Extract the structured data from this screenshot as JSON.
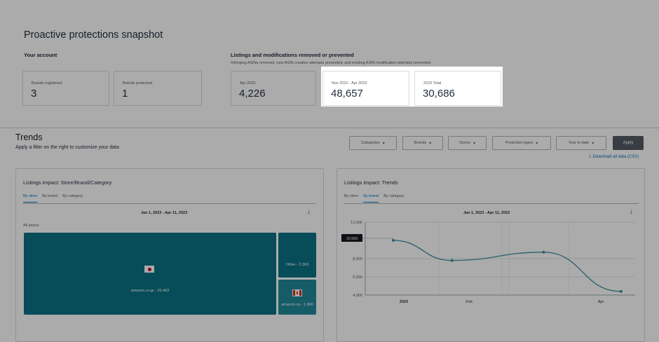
{
  "snapshot": {
    "title": "Proactive protections snapshot",
    "your_account": "Your account",
    "listings_heading": "Listings and modifications removed or prevented",
    "listings_sub": "Infringing ASINs removed, new ASIN creation attempts prevented, and existing ASIN modification attempts prevented",
    "cards": [
      {
        "label": "Brands registered",
        "value": "3"
      },
      {
        "label": "Brands protected",
        "value": "1"
      },
      {
        "label": "Apr 2023",
        "value": "4,226"
      },
      {
        "label": "Nov 2022 - Apr 2023",
        "value": "48,657"
      },
      {
        "label": "2023 Total",
        "value": "30,686"
      }
    ]
  },
  "trends": {
    "title": "Trends",
    "subtitle": "Apply a filter on the right to customize your data",
    "filters": [
      "Categories",
      "Brands",
      "Stores",
      "Protection types",
      "Year to date"
    ],
    "apply_label": "Apply",
    "download_all": "Download all data (CSV)"
  },
  "left_panel": {
    "title": "Listings impact: Store/Brand/Category",
    "tabs": [
      "By store",
      "By brand",
      "By category"
    ],
    "active_tab": "By store",
    "range": "Jan 1, 2023 - Apr 11, 2023",
    "all_stores": "All stores",
    "tiles": [
      {
        "label": "amazon.co.jp - 26,463",
        "color": "#0b7285"
      },
      {
        "label": "Other - 2,363",
        "color": "#0b7285"
      },
      {
        "label": "amazon.ca - 1,860",
        "color": "#20899a"
      }
    ]
  },
  "right_panel": {
    "title": "Listings impact: Trends",
    "tabs": [
      "By store",
      "By brand",
      "By category"
    ],
    "active_tab": "By brand",
    "range": "Jan 1, 2023 - Apr 11, 2023"
  },
  "chart_data": {
    "type": "line",
    "x_ticks": [
      "2023",
      "Feb",
      "Apr"
    ],
    "y_ticks": [
      4000,
      6000,
      8000,
      12000
    ],
    "ylim": [
      4000,
      12000
    ],
    "tooltip": "10,565",
    "series": [
      {
        "x": [
          "2023-01-01",
          "2023-01-26",
          "2023-03-06",
          "2023-04-08"
        ],
        "values": [
          10000,
          7800,
          8700,
          4400
        ]
      }
    ],
    "line_color": "#3a8fa0"
  },
  "colors": {
    "accent": "#0073bb",
    "teal": "#0b7285",
    "apply_bg": "#545b64"
  }
}
